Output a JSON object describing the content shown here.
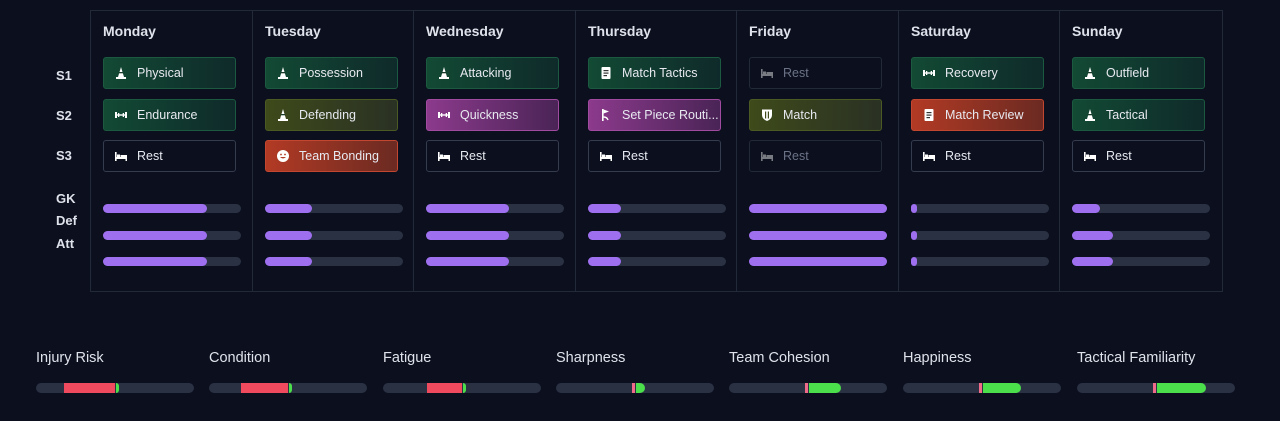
{
  "row_labels": {
    "s1": "S1",
    "s2": "S2",
    "s3": "S3",
    "gk": "GK",
    "def": "Def",
    "att": "Att"
  },
  "days": [
    {
      "name": "Monday",
      "sessions": [
        {
          "label": "Physical",
          "style": "green",
          "icon": "cone-icon"
        },
        {
          "label": "Endurance",
          "style": "green",
          "icon": "dumbbell-icon"
        },
        {
          "label": "Rest",
          "style": "rest",
          "icon": "bed-icon"
        }
      ],
      "intensity": {
        "gk": 0.75,
        "def": 0.75,
        "att": 0.75
      }
    },
    {
      "name": "Tuesday",
      "sessions": [
        {
          "label": "Possession",
          "style": "green",
          "icon": "cone-icon"
        },
        {
          "label": "Defending",
          "style": "olive",
          "icon": "cone-icon"
        },
        {
          "label": "Team Bonding",
          "style": "red",
          "icon": "smile-icon"
        }
      ],
      "intensity": {
        "gk": 0.34,
        "def": 0.34,
        "att": 0.34
      }
    },
    {
      "name": "Wednesday",
      "sessions": [
        {
          "label": "Attacking",
          "style": "green",
          "icon": "cone-icon"
        },
        {
          "label": "Quickness",
          "style": "purple",
          "icon": "dumbbell-icon"
        },
        {
          "label": "Rest",
          "style": "rest",
          "icon": "bed-icon"
        }
      ],
      "intensity": {
        "gk": 0.6,
        "def": 0.6,
        "att": 0.6
      }
    },
    {
      "name": "Thursday",
      "sessions": [
        {
          "label": "Match Tactics",
          "style": "green",
          "icon": "clipboard-icon"
        },
        {
          "label": "Set Piece Routi...",
          "style": "purple",
          "icon": "flag-icon"
        },
        {
          "label": "Rest",
          "style": "rest",
          "icon": "bed-icon"
        }
      ],
      "intensity": {
        "gk": 0.24,
        "def": 0.24,
        "att": 0.24
      }
    },
    {
      "name": "Friday",
      "sessions": [
        {
          "label": "Rest",
          "style": "muted",
          "icon": "bed-icon"
        },
        {
          "label": "Match",
          "style": "olive",
          "icon": "shield-icon"
        },
        {
          "label": "Rest",
          "style": "muted",
          "icon": "bed-icon"
        }
      ],
      "intensity": {
        "gk": 1.0,
        "def": 1.0,
        "att": 1.0
      }
    },
    {
      "name": "Saturday",
      "sessions": [
        {
          "label": "Recovery",
          "style": "green",
          "icon": "dumbbell-icon"
        },
        {
          "label": "Match Review",
          "style": "red",
          "icon": "clipboard-icon"
        },
        {
          "label": "Rest",
          "style": "rest",
          "icon": "bed-icon"
        }
      ],
      "intensity": {
        "gk": 0.04,
        "def": 0.04,
        "att": 0.04
      }
    },
    {
      "name": "Sunday",
      "sessions": [
        {
          "label": "Outfield",
          "style": "green",
          "icon": "cone-icon"
        },
        {
          "label": "Tactical",
          "style": "green",
          "icon": "cone-icon"
        },
        {
          "label": "Rest",
          "style": "rest",
          "icon": "bed-icon"
        }
      ],
      "intensity": {
        "gk": 0.2,
        "def": 0.3,
        "att": 0.3
      }
    }
  ],
  "metrics": [
    {
      "label": "Injury Risk",
      "decrease_from": 0.18,
      "current": 0.5,
      "increase_to": 0.52
    },
    {
      "label": "Condition",
      "decrease_from": 0.2,
      "current": 0.5,
      "increase_to": 0.52
    },
    {
      "label": "Fatigue",
      "decrease_from": 0.28,
      "current": 0.5,
      "increase_to": 0.52
    },
    {
      "label": "Sharpness",
      "decrease_from": 0.48,
      "current": 0.5,
      "increase_to": 0.56
    },
    {
      "label": "Team Cohesion",
      "decrease_from": 0.48,
      "current": 0.5,
      "increase_to": 0.7
    },
    {
      "label": "Happiness",
      "decrease_from": 0.48,
      "current": 0.5,
      "increase_to": 0.74
    },
    {
      "label": "Tactical Familiarity",
      "decrease_from": 0.48,
      "current": 0.5,
      "increase_to": 0.81
    }
  ],
  "colors": {
    "accent_purple": "#9e70f0",
    "negative": "#f04a5f",
    "positive": "#4be04b"
  }
}
